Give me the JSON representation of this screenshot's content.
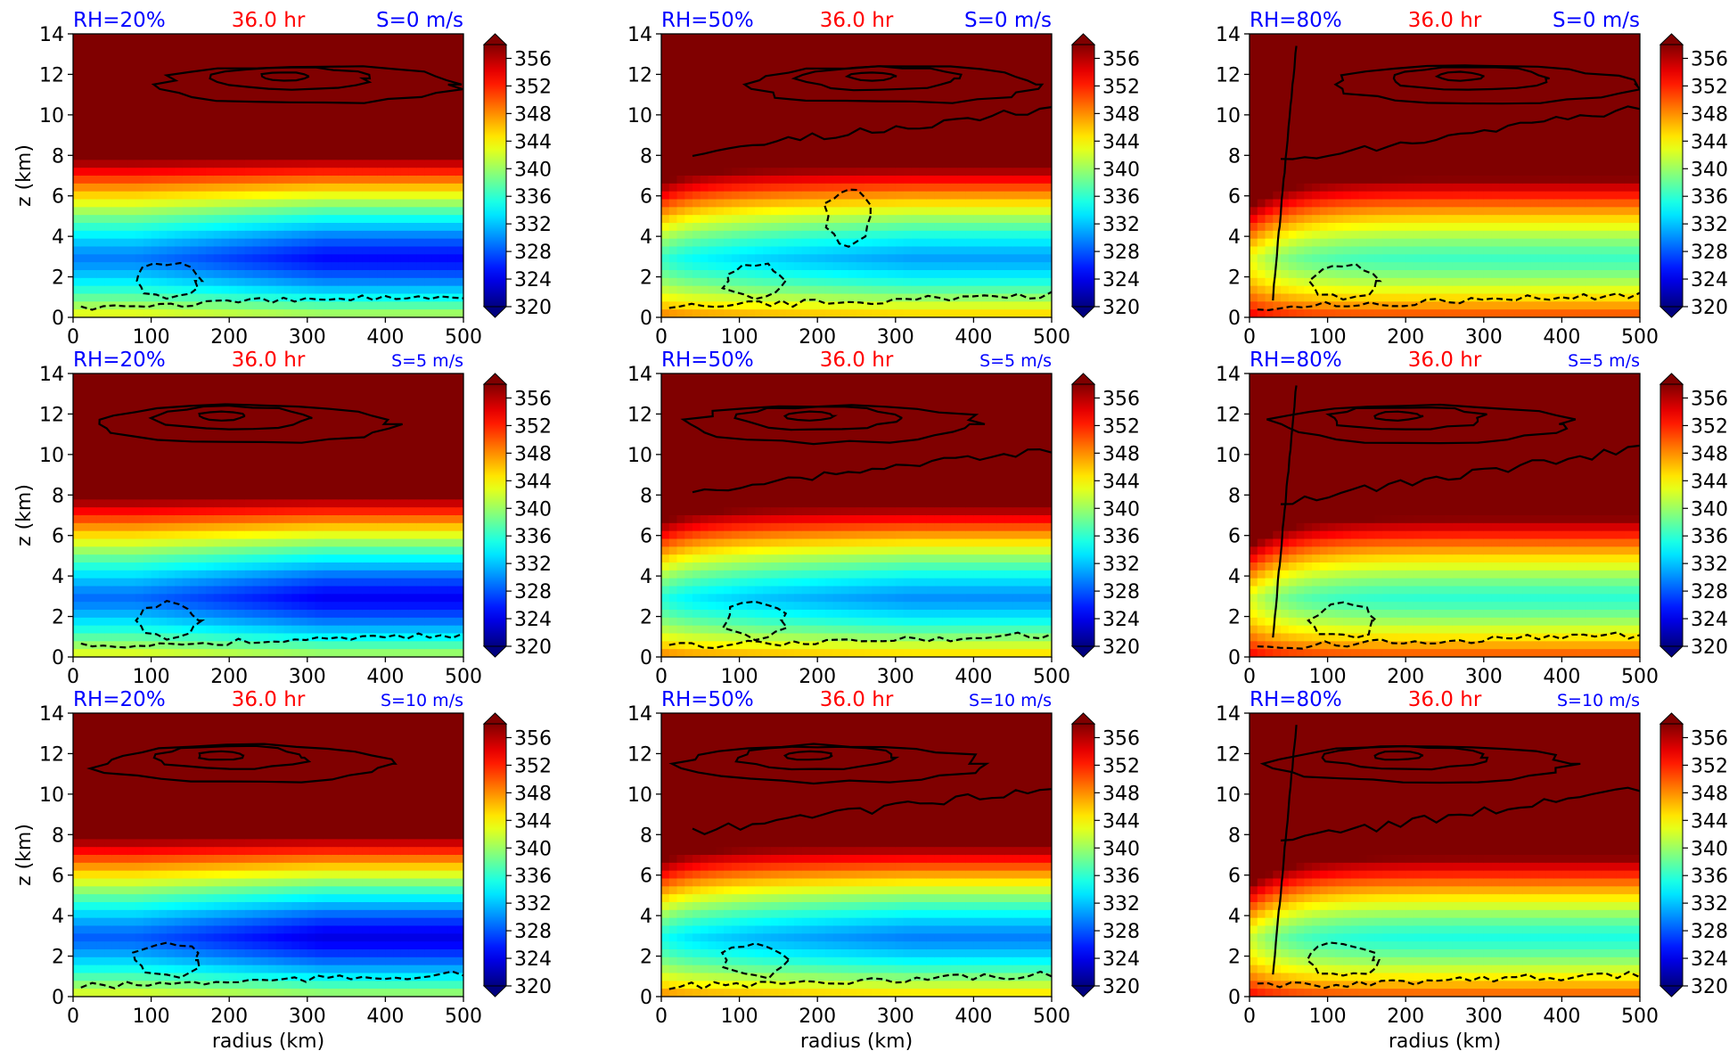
{
  "colors": {
    "rh_label": "#0000ff",
    "time_label": "#ff0000",
    "shear_label": "#0000ff",
    "contour_lines": "#000000"
  },
  "chart_data": {
    "type": "heatmap",
    "colormap": "jet",
    "colorbar": {
      "ticks": [
        "356",
        "352",
        "348",
        "344",
        "340",
        "336",
        "332",
        "328",
        "324",
        "320"
      ],
      "range": [
        320,
        358
      ],
      "extend": "both"
    },
    "xlabel": "radius (km)",
    "ylabel": "z (km)",
    "xlim": [
      0,
      500
    ],
    "ylim": [
      0,
      14
    ],
    "xticks": [
      "0",
      "100",
      "200",
      "300",
      "400",
      "500"
    ],
    "yticks": [
      "0",
      "2",
      "4",
      "6",
      "8",
      "10",
      "12",
      "14"
    ],
    "panels": [
      {
        "rh": "RH=20%",
        "time": "36.0 hr",
        "shear": "S=0 m/s",
        "rh_value": 20,
        "shear_value": 0
      },
      {
        "rh": "RH=50%",
        "time": "36.0 hr",
        "shear": "S=0 m/s",
        "rh_value": 50,
        "shear_value": 0
      },
      {
        "rh": "RH=80%",
        "time": "36.0 hr",
        "shear": "S=0 m/s",
        "rh_value": 80,
        "shear_value": 0
      },
      {
        "rh": "RH=20%",
        "time": "36.0 hr",
        "shear": "S=5 m/s",
        "rh_value": 20,
        "shear_value": 5
      },
      {
        "rh": "RH=50%",
        "time": "36.0 hr",
        "shear": "S=5 m/s",
        "rh_value": 50,
        "shear_value": 5
      },
      {
        "rh": "RH=80%",
        "time": "36.0 hr",
        "shear": "S=5 m/s",
        "rh_value": 80,
        "shear_value": 5
      },
      {
        "rh": "RH=20%",
        "time": "36.0 hr",
        "shear": "S=10 m/s",
        "rh_value": 20,
        "shear_value": 10
      },
      {
        "rh": "RH=50%",
        "time": "36.0 hr",
        "shear": "S=10 m/s",
        "rh_value": 50,
        "shear_value": 10
      },
      {
        "rh": "RH=80%",
        "time": "36.0 hr",
        "shear": "S=10 m/s",
        "rh_value": 80,
        "shear_value": 10
      }
    ]
  }
}
